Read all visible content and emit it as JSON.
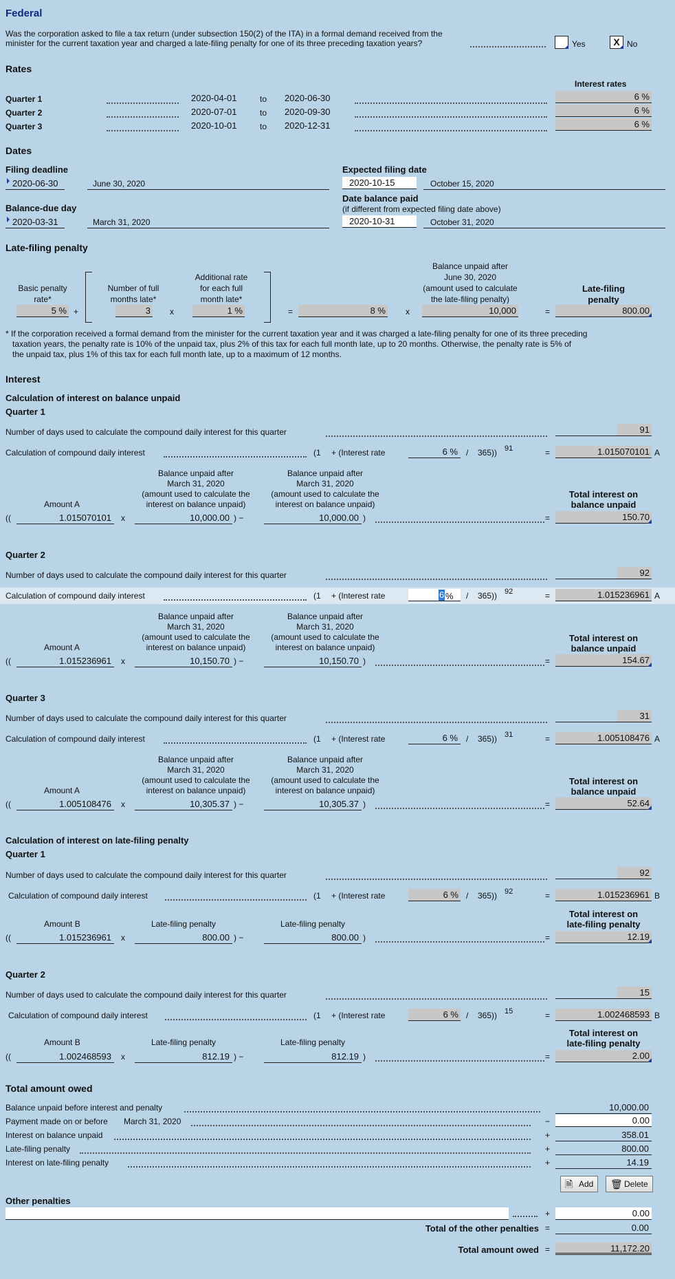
{
  "title": "Federal",
  "question": {
    "line1": "Was the corporation asked to file a tax return (under subsection 150(2) of the ITA) in a formal demand received from the",
    "line2": "minister for the current taxation year and charged a late-filing penalty for one of its three preceding taxation years?",
    "yes": "Yes",
    "no": "No",
    "no_mark": "X"
  },
  "rates": {
    "heading": "Rates",
    "col_header": "Interest rates",
    "to": "to",
    "rows": [
      {
        "label": "Quarter 1",
        "from": "2020-04-01",
        "to": "2020-06-30",
        "rate": "6 %"
      },
      {
        "label": "Quarter 2",
        "from": "2020-07-01",
        "to": "2020-09-30",
        "rate": "6 %"
      },
      {
        "label": "Quarter 3",
        "from": "2020-10-01",
        "to": "2020-12-31",
        "rate": "6 %"
      }
    ]
  },
  "dates": {
    "heading": "Dates",
    "filing_deadline_label": "Filing deadline",
    "filing_deadline": "2020-06-30",
    "filing_deadline_text": "June 30, 2020",
    "balance_due_label": "Balance-due day",
    "balance_due": "2020-03-31",
    "balance_due_text": "March 31, 2020",
    "expected_label": "Expected filing date",
    "expected": "2020-10-15",
    "expected_text": "October 15, 2020",
    "paid_label": "Date balance paid",
    "paid_sub": "(if different from expected filing date above)",
    "paid": "2020-10-31",
    "paid_text": "October 31, 2020"
  },
  "penalty": {
    "heading": "Late-filing penalty",
    "basic_label_1": "Basic penalty",
    "basic_label_2": "rate*",
    "basic": "5 %",
    "months_label_1": "Number of full",
    "months_label_2": "months late*",
    "months": "3",
    "add_label_1": "Additional rate",
    "add_label_2": "for each full",
    "add_label_3": "month late*",
    "add": "1 %",
    "total_rate": "8 %",
    "bal_label_1": "Balance unpaid after",
    "bal_label_2": "June 30, 2020",
    "bal_label_3": "(amount used to calculate",
    "bal_label_4": "the late-filing penalty)",
    "bal": "10,000",
    "lfp_label_1": "Late-filing",
    "lfp_label_2": "penalty",
    "lfp": "800.00",
    "plus": "+",
    "x": "x",
    "eq": "=",
    "note_1": "* If the corporation received a formal demand from the minister for the current taxation year and it was charged a late-filing penalty for one of its three preceding",
    "note_2": "taxation years, the penalty rate is 10% of the unpaid tax, plus 2% of this tax for each full month late, up to 20 months. Otherwise, the penalty rate is 5% of",
    "note_3": "the unpaid tax, plus 1% of this tax for each full month late, up to a maximum of 12 months."
  },
  "interest": {
    "heading": "Interest",
    "sub1": "Calculation of interest on balance unpaid",
    "sub2": "Calculation of interest on late-filing penalty",
    "days_label": "Number of days used to calculate the compound daily interest for this quarter",
    "cdi_label": "Calculation of compound daily interest",
    "open": "(1",
    "plus_rate": "+ (Interest rate",
    "slash": "/",
    "days365": "365))",
    "amount_a": "Amount A",
    "amount_b": "Amount B",
    "bu_1": "Balance unpaid after",
    "bu_2": "March 31, 2020",
    "bu_3": "(amount used to calculate the",
    "bu_4": "interest on balance unpaid)",
    "lfp_label": "Late-filing penalty",
    "tot_bal_1": "Total interest on",
    "tot_bal_2": "balance unpaid",
    "tot_lfp_1": "Total interest on",
    "tot_lfp_2": "late-filing penalty",
    "dbl_paren": "((",
    "times": "x",
    "close_minus": ")  −",
    "close": ")",
    "eq": "=",
    "letter_a": "A",
    "letter_b": "B",
    "bal_quarters": [
      {
        "label": "Quarter 1",
        "days": "91",
        "rate": "6 %",
        "exp": "91",
        "factor": "1.015070101",
        "amount": "1.015070101",
        "bal1": "10,000.00",
        "bal2": "10,000.00",
        "total": "150.70"
      },
      {
        "label": "Quarter 2",
        "days": "92",
        "rate": "6",
        "rate_suffix": "%",
        "exp": "92",
        "factor": "1.015236961",
        "amount": "1.015236961",
        "bal1": "10,150.70",
        "bal2": "10,150.70",
        "total": "154.67"
      },
      {
        "label": "Quarter 3",
        "days": "31",
        "rate": "6 %",
        "exp": "31",
        "factor": "1.005108476",
        "amount": "1.005108476",
        "bal1": "10,305.37",
        "bal2": "10,305.37",
        "total": "52.64"
      }
    ],
    "lfp_quarters": [
      {
        "label": "Quarter 1",
        "days": "92",
        "rate": "6 %",
        "exp": "92",
        "factor": "1.015236961",
        "amount": "1.015236961",
        "p1": "800.00",
        "p2": "800.00",
        "total": "12.19"
      },
      {
        "label": "Quarter 2",
        "days": "15",
        "rate": "6 %",
        "exp": "15",
        "factor": "1.002468593",
        "amount": "1.002468593",
        "p1": "812.19",
        "p2": "812.19",
        "total": "2.00"
      }
    ]
  },
  "owed": {
    "heading": "Total amount owed",
    "bal_label": "Balance unpaid before interest and penalty",
    "bal": "10,000.00",
    "pay_label": "Payment made on or before",
    "pay_date": "March 31, 2020",
    "pay": "0.00",
    "minus": "−",
    "plus": "+",
    "int_bal_label": "Interest on balance unpaid",
    "int_bal": "358.01",
    "lfp_label": "Late-filing penalty",
    "lfp": "800.00",
    "int_lfp_label": "Interest on late-filing penalty",
    "int_lfp": "14.19",
    "add": "Add",
    "delete": "Delete",
    "other_label": "Other penalties",
    "other": "0.00",
    "other_total_label": "Total of the other penalties",
    "other_total": "0.00",
    "total_label": "Total amount owed",
    "total": "11,172.20",
    "eq": "="
  }
}
